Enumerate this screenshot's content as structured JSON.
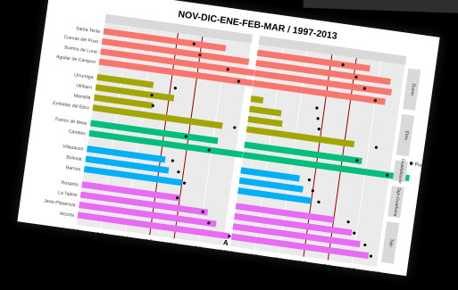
{
  "chart_data": {
    "type": "bar",
    "title": "NOV-DIC-ENE-FEB-MAR / 1997-2013",
    "xlabel": "AREA ROC",
    "ylabel": "",
    "xlim": [
      0.2,
      0.8
    ],
    "xticks": [
      "0.2",
      "0.3",
      "0.4",
      "0.5",
      "0.6",
      "0.7",
      "0.8"
    ],
    "reference_lines": [
      0.5,
      0.6
    ],
    "legend": {
      "label": "Punts",
      "placement": "right"
    },
    "stations": [
      "Santa Tecla",
      "Cuevas del Pozo",
      "Burrios de Luna",
      "Aguilar de Campoo",
      "Urrunaga",
      "Ullíbarri",
      "Mansilla",
      "Embalse del Ebro",
      "Tranco de Beas",
      "Canales",
      "Villasauce",
      "Bolosar",
      "Barrios",
      "Rosarito",
      "La Tajera",
      "Jerte-Plasencia",
      "Alcorta"
    ],
    "panels": [
      {
        "name": "Tercil SUPERIOR",
        "groups": [
          {
            "name": "Duero",
            "color": "#f8766d",
            "bars": [
              0.7,
              0.8,
              0.88,
              0.88
            ],
            "points": [
              0.57,
              0.6,
              0.72,
              0.77
            ]
          },
          {
            "name": "Ebro",
            "color": "#a3a500",
            "bars": [
              0.43,
              0.52,
              0.44,
              0.73
            ],
            "points": [
              0.52,
              0.43,
              0.44,
              0.78
            ]
          },
          {
            "name": "Guadalquivir",
            "color": "#00bf7d",
            "bars": [
              0.72,
              0.83
            ],
            "points": [
              0.59,
              0.69
            ]
          },
          {
            "name": "Tajo-Guadiana",
            "color": "#00b0f6",
            "bars": [
              0.52,
              0.54,
              0.6
            ],
            "points": [
              0.55,
              0.58,
              0.61
            ]
          },
          {
            "name": "Tajo",
            "color": "#e76bf3",
            "bars": [
              0.6,
              0.72,
              0.76,
              0.82
            ],
            "points": [
              0.59,
              0.7,
              0.73,
              0.82
            ]
          }
        ]
      },
      {
        "name": "Tercil INFERIOR",
        "groups": [
          {
            "name": "Duero",
            "color": "#f8766d",
            "bars": [
              0.66,
              0.75,
              0.76,
              0.74
            ],
            "points": [
              0.55,
              0.61,
              0.65,
              0.7
            ]
          },
          {
            "name": "Ebro",
            "color": "#a3a500",
            "bars": [
              0.25,
              0.33,
              0.34,
              0.64
            ],
            "points": [
              0.47,
              0.48,
              0.49,
              0.73
            ]
          },
          {
            "name": "Guadalquivir",
            "color": "#00bf7d",
            "bars": [
              0.68,
              0.88
            ],
            "points": [
              0.66,
              0.79
            ]
          },
          {
            "name": "Tajo-Guadiana",
            "color": "#00b0f6",
            "bars": [
              0.44,
              0.46,
              0.5
            ],
            "points": [
              0.48,
              0.5,
              0.53
            ]
          },
          {
            "name": "Tajo",
            "color": "#e76bf3",
            "bars": [
              0.6,
              0.68,
              0.72,
              0.76
            ],
            "points": [
              0.66,
              0.69,
              0.74,
              0.77
            ]
          }
        ]
      }
    ]
  }
}
